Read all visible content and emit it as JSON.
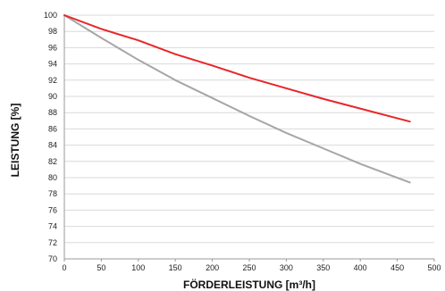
{
  "chart_data": {
    "type": "line",
    "xlabel": "FÖRDERLEISTUNG [m³/h]",
    "ylabel": "LEISTUNG [%]",
    "xlim": [
      0,
      500
    ],
    "ylim": [
      70,
      100
    ],
    "x_ticks": [
      0,
      50,
      100,
      150,
      200,
      250,
      300,
      350,
      400,
      450,
      500
    ],
    "y_ticks": [
      70,
      72,
      74,
      76,
      78,
      80,
      82,
      84,
      86,
      88,
      90,
      92,
      94,
      96,
      98,
      100
    ],
    "x_tick_labels": [
      "0",
      "50",
      "100",
      "150",
      "200",
      "250",
      "300",
      "350",
      "400",
      "450",
      "500"
    ],
    "y_tick_labels": [
      "70",
      "72",
      "74",
      "76",
      "78",
      "80",
      "82",
      "84",
      "86",
      "88",
      "90",
      "92",
      "94",
      "96",
      "98",
      "100"
    ],
    "grid": "horizontal",
    "legend": "none",
    "series": [
      {
        "color": "#e8262a",
        "x": [
          0,
          50,
          100,
          150,
          200,
          250,
          300,
          350,
          400,
          467
        ],
        "y": [
          100,
          98.3,
          96.9,
          95.2,
          93.8,
          92.3,
          91.0,
          89.7,
          88.5,
          86.9
        ]
      },
      {
        "color": "#a6a6a6",
        "x": [
          0,
          50,
          100,
          150,
          200,
          250,
          300,
          350,
          400,
          467
        ],
        "y": [
          100,
          97.2,
          94.5,
          92.0,
          89.8,
          87.6,
          85.5,
          83.6,
          81.7,
          79.4
        ]
      }
    ]
  }
}
